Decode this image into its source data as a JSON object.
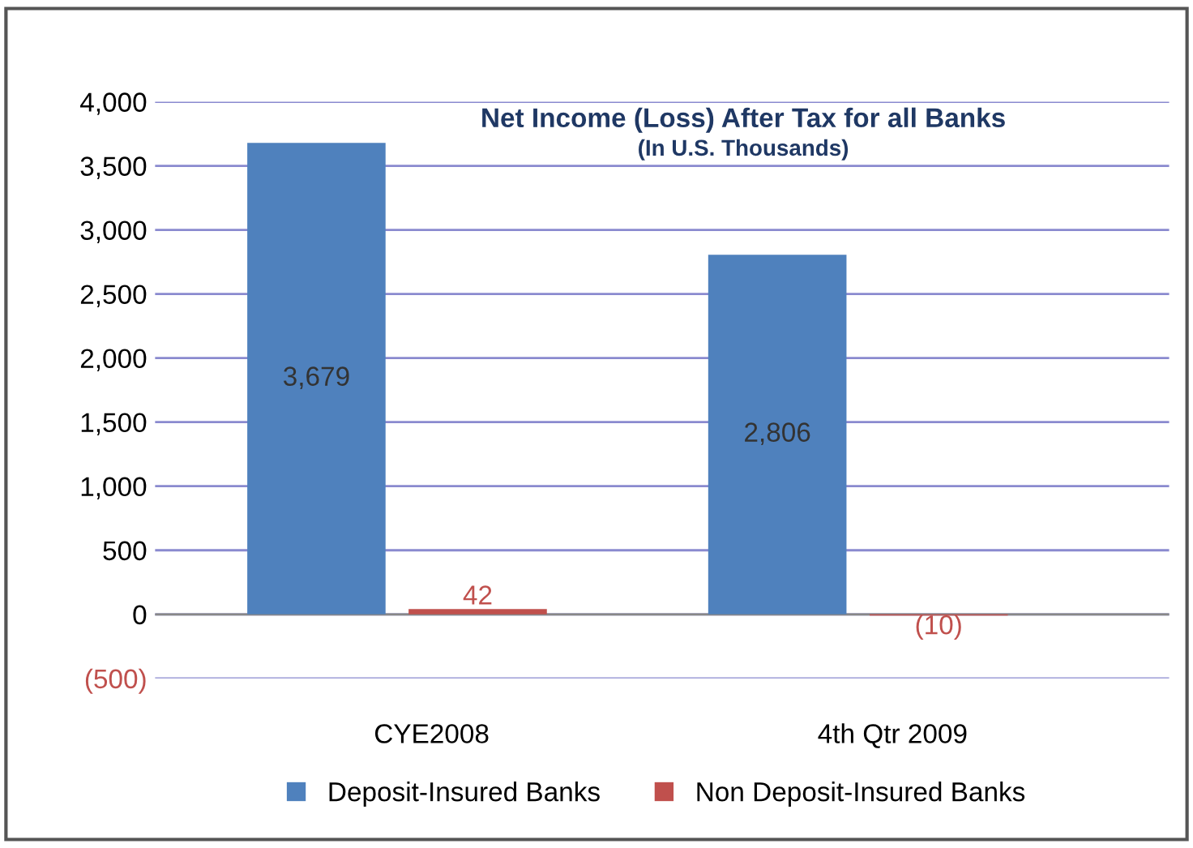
{
  "chart_data": {
    "type": "bar",
    "title": "Net Income (Loss) After Tax for all Banks",
    "subtitle": "(In U.S. Thousands)",
    "categories": [
      "CYE2008",
      "4th Qtr 2009"
    ],
    "series": [
      {
        "name": "Deposit-Insured Banks",
        "color": "#4f81bd",
        "values": [
          3679,
          2806
        ],
        "value_labels": [
          "3,679",
          "2,806"
        ]
      },
      {
        "name": "Non Deposit-Insured Banks",
        "color": "#c0504d",
        "values": [
          42,
          -10
        ],
        "value_labels": [
          "42",
          "(10)"
        ]
      }
    ],
    "ylim": [
      -500,
      4000
    ],
    "yticks": [
      {
        "value": -500,
        "label": "(500)"
      },
      0,
      500,
      {
        "value": 1000,
        "label": "1,000"
      },
      {
        "value": 1500,
        "label": "1,500"
      },
      {
        "value": 2000,
        "label": "2,000"
      },
      {
        "value": 2500,
        "label": "2,500"
      },
      {
        "value": 3000,
        "label": "3,000"
      },
      {
        "value": 3500,
        "label": "3,500"
      },
      {
        "value": 4000,
        "label": "4,000"
      }
    ],
    "grid": "y",
    "legend": "bottom"
  }
}
